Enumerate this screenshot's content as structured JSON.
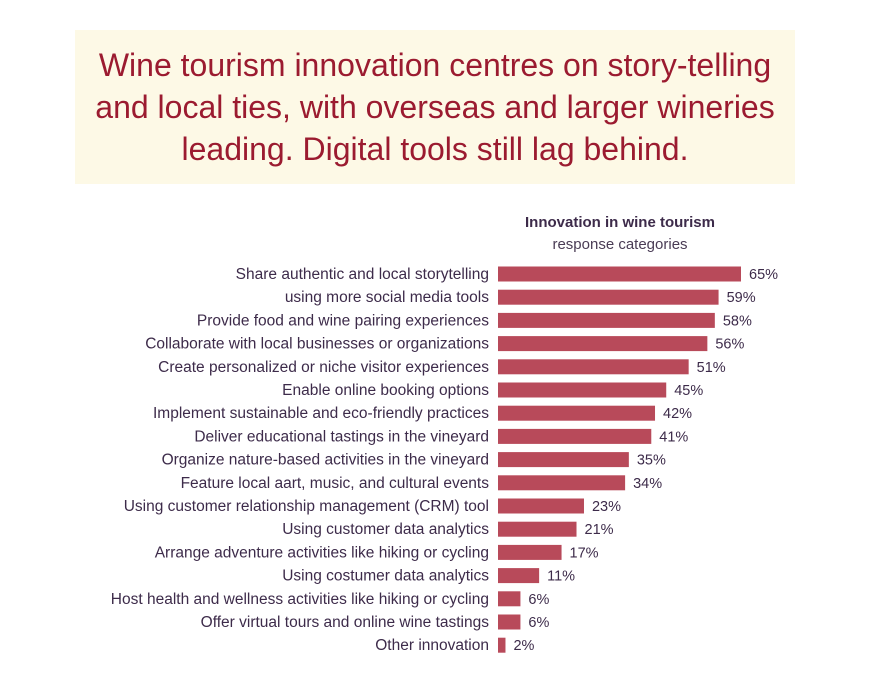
{
  "headline": "Wine tourism innovation centres on story-telling and local ties, with overseas and larger wineries leading. Digital tools still lag behind.",
  "colors": {
    "bar": "#b84a5a",
    "headline_text": "#9b1b30",
    "headline_background": "#fdf9e6"
  },
  "chart_data": {
    "type": "bar",
    "orientation": "horizontal",
    "title": "Innovation in wine tourism",
    "subtitle": "response categories",
    "categories": [
      "Share authentic and local storytelling",
      "using more social media tools",
      "Provide food and wine pairing experiences",
      "Collaborate with local businesses or organizations",
      "Create personalized or niche visitor experiences",
      "Enable online booking options",
      "Implement sustainable and eco-friendly practices",
      "Deliver educational tastings in the vineyard",
      "Organize nature-based activities in the vineyard",
      "Feature local aart, music, and cultural events",
      "Using customer relationship management (CRM) tool",
      "Using customer data analytics",
      "Arrange adventure activities like hiking or cycling",
      "Using costumer data analytics",
      "Host health and wellness activities like hiking or cycling",
      "Offer virtual tours and online wine tastings",
      "Other innovation"
    ],
    "values": [
      65,
      59,
      58,
      56,
      51,
      45,
      42,
      41,
      35,
      34,
      23,
      21,
      17,
      11,
      6,
      6,
      2
    ],
    "value_labels": [
      "65%",
      "59%",
      "58%",
      "56%",
      "51%",
      "45%",
      "42%",
      "41%",
      "35%",
      "34%",
      "23%",
      "21%",
      "17%",
      "11%",
      "6%",
      "6%",
      "2%"
    ],
    "unit": "%",
    "xlim": [
      0,
      65
    ],
    "grid": false,
    "legend": "none"
  }
}
